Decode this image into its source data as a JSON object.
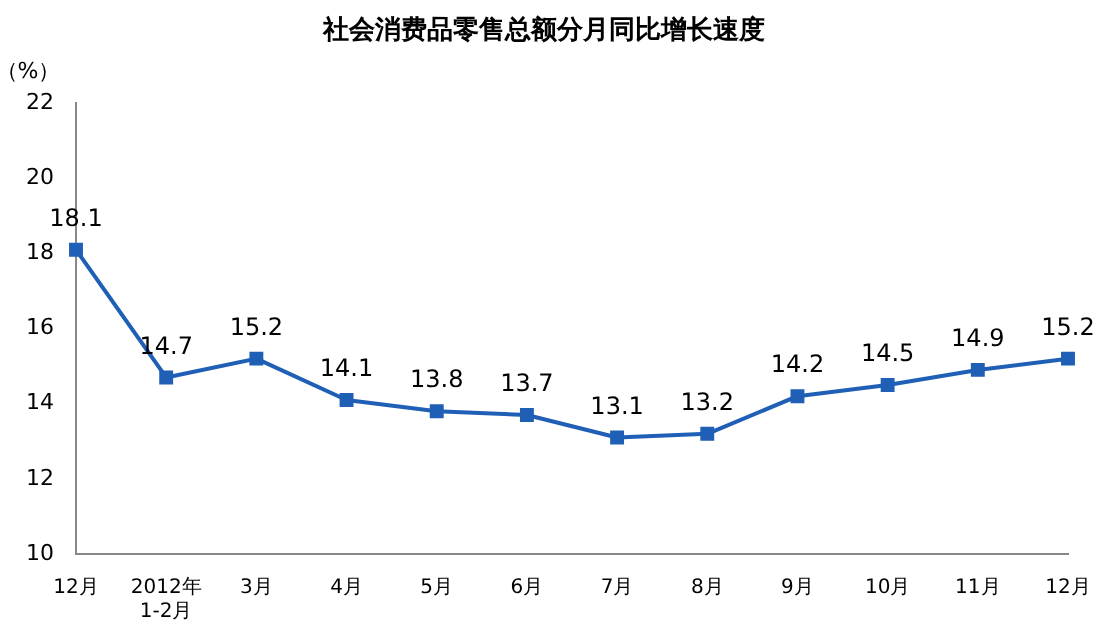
{
  "chart_data": {
    "type": "line",
    "title": "社会消费品零售总额分月同比增长速度",
    "ylabel": "（%）",
    "categories": [
      "12月",
      "2012年\n1-2月",
      "3月",
      "4月",
      "5月",
      "6月",
      "7月",
      "8月",
      "9月",
      "10月",
      "11月",
      "12月"
    ],
    "series": [
      {
        "color": "#1f5fb5",
        "values": [
          18.1,
          14.7,
          15.2,
          14.1,
          13.8,
          13.7,
          13.1,
          13.2,
          14.2,
          14.5,
          14.9,
          15.2
        ]
      }
    ],
    "ylim": [
      10,
      22
    ],
    "yticks": [
      10,
      12,
      14,
      16,
      18,
      20,
      22
    ],
    "grid": false,
    "legend": false,
    "marker": "square",
    "line_style": "solid",
    "data_labels": true
  }
}
